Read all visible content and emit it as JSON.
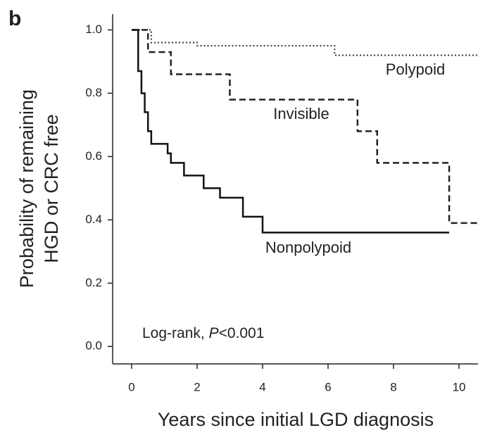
{
  "chart_data": {
    "type": "step",
    "panel_label": "b",
    "ylabel": [
      "Probability of remaining",
      "HGD or CRC free"
    ],
    "xlabel": "Years since initial LGD diagnosis",
    "annotation": [
      "Log-rank, ",
      "P",
      "<0.001"
    ],
    "xlim": [
      -0.58,
      10.58
    ],
    "ylim": [
      -0.055,
      1.05
    ],
    "xticks": [
      0,
      2,
      4,
      6,
      8,
      10
    ],
    "yticks": [
      {
        "value": 0,
        "label": "0.0"
      },
      0.2,
      0.4,
      0.6,
      0.8,
      {
        "value": 1,
        "label": "1.0"
      }
    ],
    "series": [
      {
        "name": "Polypoid",
        "color": "#333333",
        "line_style": "dotted",
        "x": [
          0,
          0.6,
          2.0,
          6.2,
          10.58
        ],
        "values": [
          1.0,
          0.96,
          0.95,
          0.92,
          0.92
        ]
      },
      {
        "name": "Invisible",
        "color": "#222222",
        "line_style": "dashed",
        "x": [
          0,
          0.5,
          1.2,
          3.0,
          6.9,
          7.5,
          9.7,
          10.58
        ],
        "values": [
          1.0,
          0.93,
          0.86,
          0.78,
          0.68,
          0.58,
          0.39,
          0.39
        ]
      },
      {
        "name": "Nonpolypoid",
        "color": "#111111",
        "line_style": "solid",
        "x": [
          0,
          0.2,
          0.3,
          0.4,
          0.5,
          0.6,
          1.1,
          1.2,
          1.6,
          2.2,
          2.7,
          3.4,
          4.0,
          9.7
        ],
        "values": [
          1.0,
          0.87,
          0.8,
          0.74,
          0.68,
          0.64,
          0.61,
          0.58,
          0.54,
          0.5,
          0.47,
          0.41,
          0.36,
          0.36
        ]
      }
    ]
  }
}
